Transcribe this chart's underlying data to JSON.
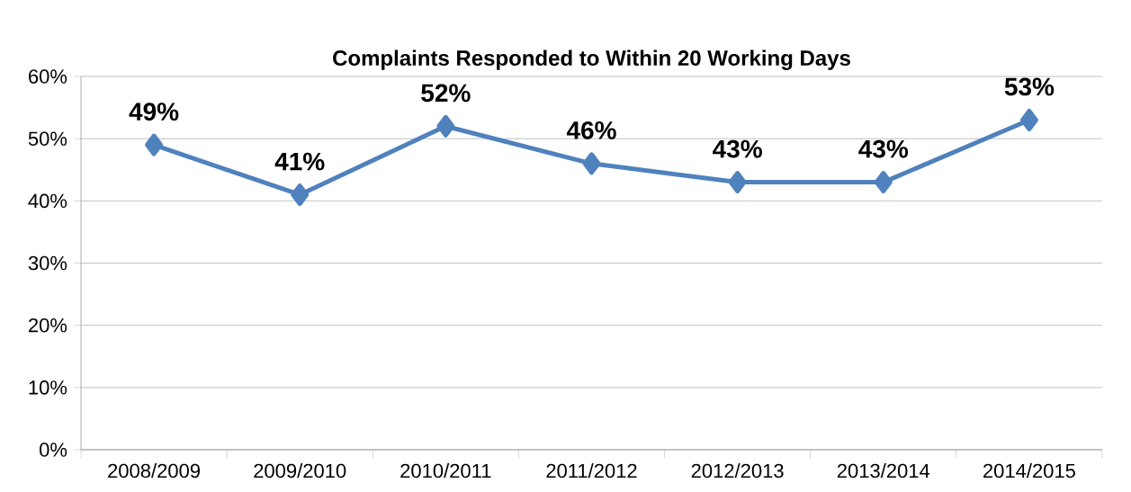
{
  "chart_data": {
    "type": "line",
    "title": "Complaints Responded to Within 20 Working Days",
    "categories": [
      "2008/2009",
      "2009/2010",
      "2010/2011",
      "2011/2012",
      "2012/2013",
      "2013/2014",
      "2014/2015"
    ],
    "values": [
      49,
      41,
      52,
      46,
      43,
      43,
      53
    ],
    "value_labels": [
      "49%",
      "41%",
      "52%",
      "46%",
      "43%",
      "43%",
      "53%"
    ],
    "color": "#4f81bd",
    "marker": "diamond",
    "line_style": "solid",
    "grid": "y",
    "ylim": [
      0,
      60
    ],
    "yticks": [
      {
        "value": 0,
        "label": "0%"
      },
      {
        "value": 10,
        "label": "10%"
      },
      {
        "value": 20,
        "label": "20%"
      },
      {
        "value": 30,
        "label": "30%"
      },
      {
        "value": 40,
        "label": "40%"
      },
      {
        "value": 50,
        "label": "50%"
      },
      {
        "value": 60,
        "label": "60%"
      }
    ]
  }
}
